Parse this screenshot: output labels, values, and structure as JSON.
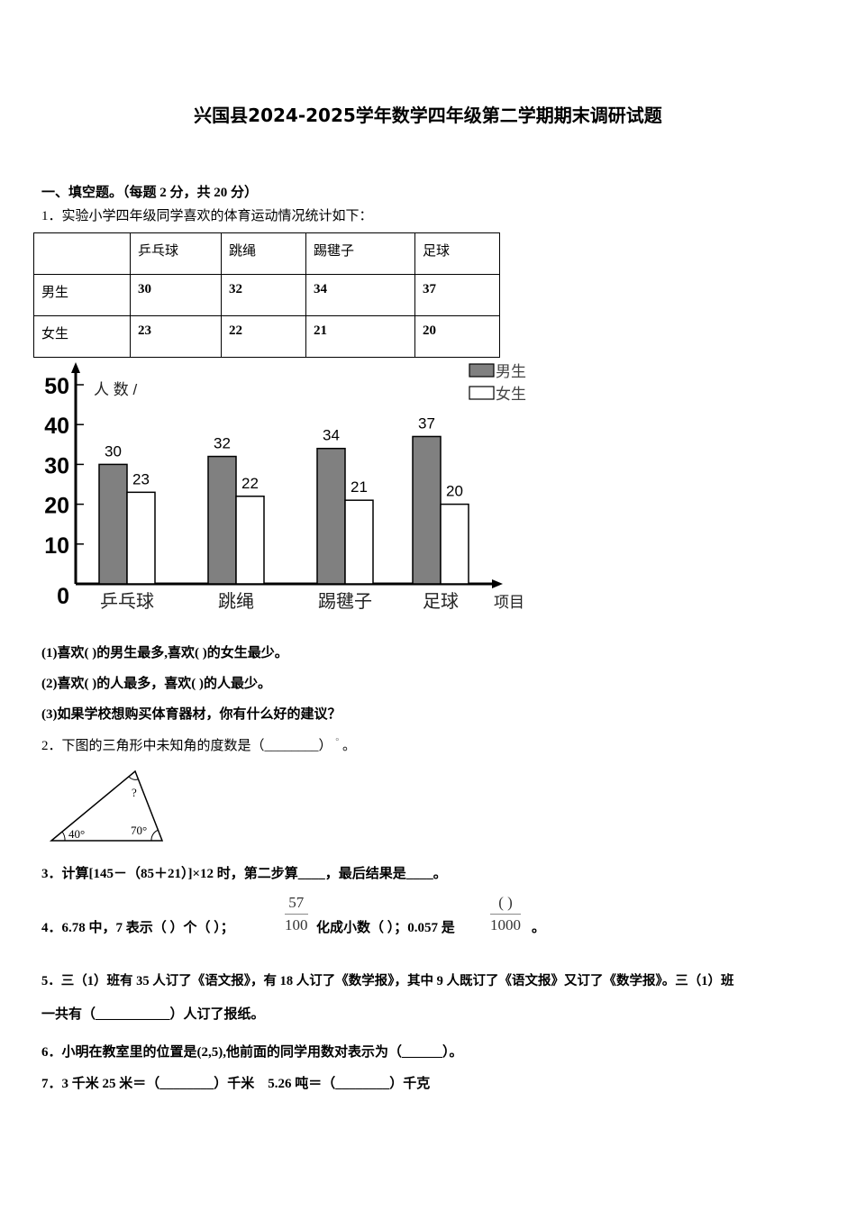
{
  "title": "兴国县2024-2025学年数学四年级第二学期期末调研试题",
  "section1": "一、填空题。（每题 2 分，共 20 分）",
  "q1": {
    "text": "1．实验小学四年级同学喜欢的体育运动情况统计如下：",
    "table": {
      "headers": [
        "",
        "乒乓球",
        "跳绳",
        "踢毽子",
        "足球"
      ],
      "rows": [
        {
          "label": "男生",
          "values": [
            "30",
            "32",
            "34",
            "37"
          ]
        },
        {
          "label": "女生",
          "values": [
            "23",
            "22",
            "21",
            "20"
          ]
        }
      ]
    },
    "sub1": "(1)喜欢(   )的男生最多,喜欢(      )的女生最少。",
    "sub2": "(2)喜欢( )的人最多，喜欢(   )的人最少。",
    "sub3": "(3)如果学校想购买体育器材，你有什么好的建议？"
  },
  "chart_data": {
    "type": "bar",
    "ylabel": "人 数 /",
    "xlabel": "项目",
    "categories": [
      "乒乓球",
      "跳绳",
      "踢毽子",
      "足球"
    ],
    "series": [
      {
        "name": "男生",
        "values": [
          30,
          32,
          34,
          37
        ],
        "color": "#808080"
      },
      {
        "name": "女生",
        "values": [
          23,
          22,
          21,
          20
        ],
        "color": "#ffffff"
      }
    ],
    "yticks": [
      "0",
      "10",
      "20",
      "30",
      "40",
      "50"
    ],
    "ylim": [
      0,
      50
    ],
    "grid": false,
    "legend": "top-right"
  },
  "q2": {
    "text": "2．下图的三角形中未知角的度数是（________）",
    "degree": "°",
    "end": "。",
    "angles": [
      "40°",
      "70°",
      "?"
    ]
  },
  "q3": "3．计算[145－（85＋21）]×12 时，第二步算____，最后结果是____。",
  "q4": {
    "a": "4．6.78 中，7 表示（   ）个（   ）；",
    "frac1_num": "57",
    "frac1_den": "100",
    "b": "化成小数（   ）；0.057 是",
    "frac2_num": "(    )",
    "frac2_den": "1000",
    "c": "。"
  },
  "q5": {
    "line1": "5．三（1）班有 35 人订了《语文报》，有 18 人订了《数学报》，其中 9 人既订了《语文报》又订了《数学报》。三（1）班",
    "line2": "一共有（___________）人订了报纸。"
  },
  "q6": "6．小明在教室里的位置是(2,5),他前面的同学用数对表示为（______）。",
  "q7": "7．3 千米 25 米＝（________）千米    5.26 吨＝（________）千克"
}
